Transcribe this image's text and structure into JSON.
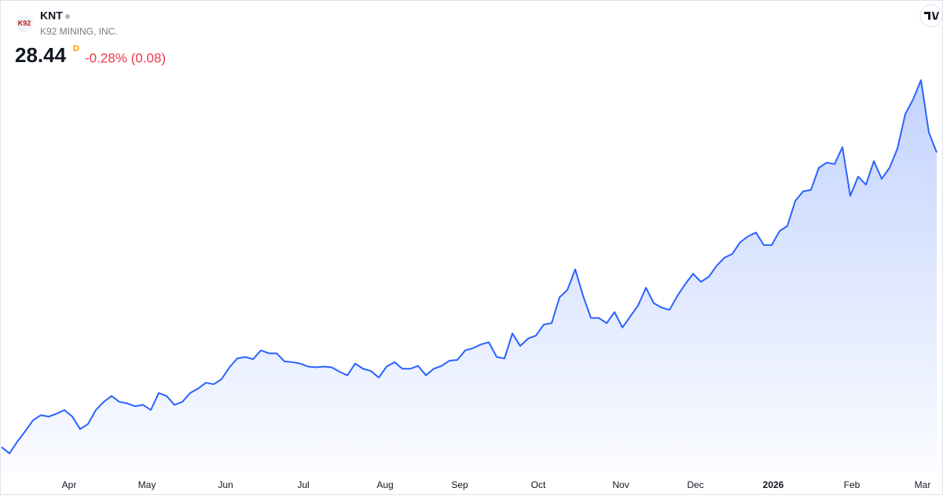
{
  "header": {
    "logo": "K92",
    "symbol": "KNT",
    "name": "K92 MINING, INC.",
    "price": 28.44,
    "interval": "D",
    "change": "-0.28% (0.08)"
  },
  "chart_data": {
    "type": "area",
    "color": "#2962ff",
    "values": [
      8.43,
      8.0,
      8.8,
      9.5,
      10.25,
      10.6,
      10.5,
      10.7,
      10.95,
      10.5,
      9.65,
      10.0,
      10.95,
      11.5,
      11.9,
      11.5,
      11.4,
      11.2,
      11.3,
      10.95,
      12.1,
      11.9,
      11.3,
      11.5,
      12.1,
      12.4,
      12.8,
      12.7,
      13.05,
      13.85,
      14.45,
      14.55,
      14.4,
      15.0,
      14.8,
      14.8,
      14.25,
      14.2,
      14.1,
      13.9,
      13.85,
      13.9,
      13.85,
      13.55,
      13.3,
      14.1,
      13.75,
      13.6,
      13.15,
      13.9,
      14.2,
      13.75,
      13.75,
      13.95,
      13.3,
      13.75,
      13.95,
      14.3,
      14.35,
      15.0,
      15.15,
      15.4,
      15.55,
      14.55,
      14.45,
      16.15,
      15.3,
      15.8,
      16.0,
      16.75,
      16.85,
      18.6,
      19.1,
      20.5,
      18.7,
      17.2,
      17.2,
      16.85,
      17.6,
      16.55,
      17.3,
      18.05,
      19.25,
      18.2,
      17.9,
      17.75,
      18.7,
      19.5,
      20.2,
      19.65,
      20.0,
      20.75,
      21.3,
      21.55,
      22.35,
      22.75,
      23.0,
      22.15,
      22.15,
      23.1,
      23.45,
      25.15,
      25.8,
      25.9,
      27.4,
      27.75,
      27.65,
      28.8,
      25.5,
      26.8,
      26.25,
      27.85,
      26.65,
      27.4,
      28.7,
      31.05,
      32.05,
      33.35,
      29.8,
      28.44
    ],
    "xticks": [
      {
        "value": 8.6,
        "label": "Apr"
      },
      {
        "value": 18.5,
        "label": "May"
      },
      {
        "value": 28.5,
        "label": "Jun"
      },
      {
        "value": 38.4,
        "label": "Jul"
      },
      {
        "value": 48.8,
        "label": "Aug"
      },
      {
        "value": 58.3,
        "label": "Sep"
      },
      {
        "value": 68.3,
        "label": "Oct"
      },
      {
        "value": 78.8,
        "label": "Nov"
      },
      {
        "value": 88.3,
        "label": "Dec"
      },
      {
        "value": 98.2,
        "label": "2026"
      },
      {
        "value": 108.2,
        "label": "Feb"
      },
      {
        "value": 117.2,
        "label": "Mar"
      }
    ]
  }
}
